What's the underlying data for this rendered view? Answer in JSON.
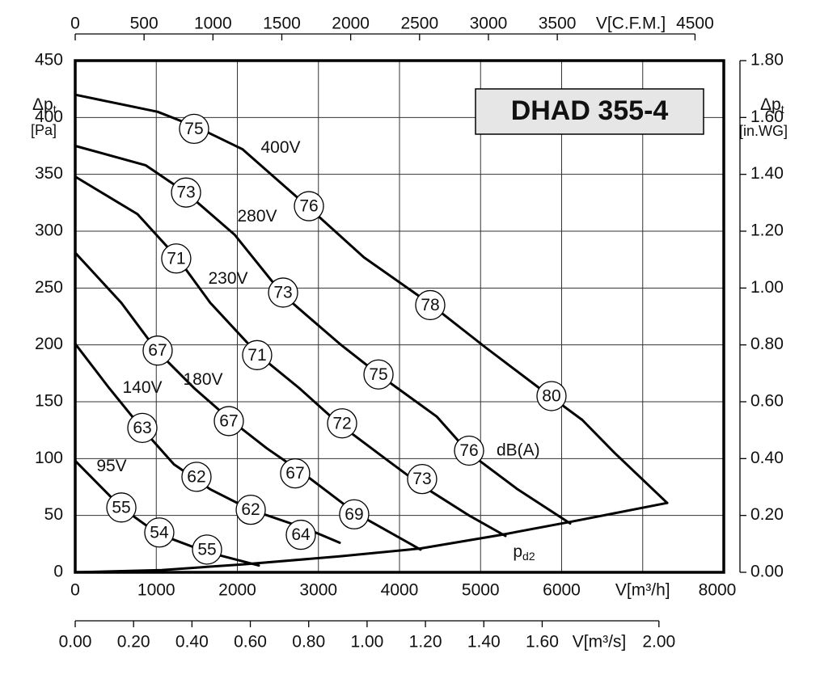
{
  "chart_data": {
    "type": "line",
    "title": "DHAD 355-4",
    "xlim": [
      0,
      8000
    ],
    "xticks": [
      0,
      1000,
      2000,
      3000,
      4000,
      5000,
      6000,
      {
        "value": 7000,
        "label": "V[m³/h]"
      },
      8000
    ],
    "ylim": [
      0,
      450
    ],
    "yticks": [
      0,
      50,
      100,
      150,
      200,
      250,
      300,
      350,
      400,
      450
    ],
    "ylabel": "Δp",
    "ylabel_subscript": "t",
    "ylabel_unit": "[Pa]",
    "x2lim": [
      0,
      4708.8
    ],
    "x2ticks": [
      0,
      500,
      1000,
      1500,
      2000,
      2500,
      3000,
      3500,
      4500
    ],
    "x2label": "V[C.F.M.]",
    "x3lim": [
      0,
      2.2222
    ],
    "x3ticks": [
      {
        "value": 0,
        "label": "0.00"
      },
      {
        "value": 0.2,
        "label": "0.20"
      },
      {
        "value": 0.4,
        "label": "0.40"
      },
      {
        "value": 0.6,
        "label": "0.60"
      },
      {
        "value": 0.8,
        "label": "0.80"
      },
      {
        "value": 1.0,
        "label": "1.00"
      },
      {
        "value": 1.2,
        "label": "1.20"
      },
      {
        "value": 1.4,
        "label": "1.40"
      },
      {
        "value": 1.6,
        "label": "1.60"
      },
      {
        "value": 2.0,
        "label": "2.00"
      }
    ],
    "x3label": "V[m³/s]",
    "y2lim": [
      0,
      1.8
    ],
    "y2ticks": [
      {
        "value": 0,
        "label": "0.00"
      },
      {
        "value": 0.2,
        "label": "0.20"
      },
      {
        "value": 0.4,
        "label": "0.40"
      },
      {
        "value": 0.6,
        "label": "0.60"
      },
      {
        "value": 0.8,
        "label": "0.80"
      },
      {
        "value": 1.0,
        "label": "1.00"
      },
      {
        "value": 1.2,
        "label": "1.20"
      },
      {
        "value": 1.4,
        "label": "1.40"
      },
      {
        "value": 1.6,
        "label": "1.60"
      },
      {
        "value": 1.8,
        "label": "1.80"
      }
    ],
    "y2label": "Δp",
    "y2label_subscript": "t",
    "y2label_unit": "[in.WG]",
    "grid": true,
    "sound_unit": "dB(A)",
    "series": [
      {
        "name": "400V",
        "color": "#000000",
        "x": [
          0,
          1017,
          1516,
          2065,
          2863,
          3561,
          4359,
          5057,
          5855,
          6254,
          6653,
          7302
        ],
        "values": [
          420,
          405,
          391,
          372,
          322,
          277,
          237,
          198,
          155,
          134,
          105,
          61
        ]
      },
      {
        "name": "280V",
        "color": "#000000",
        "x": [
          0,
          868,
          1367,
          1965,
          2564,
          3262,
          3761,
          4459,
          4858,
          5456,
          6105
        ],
        "values": [
          375,
          358,
          334,
          297,
          244,
          201,
          173,
          137,
          105,
          73,
          43
        ]
      },
      {
        "name": "230V",
        "color": "#000000",
        "x": [
          0,
          768,
          1267,
          1666,
          2264,
          2763,
          3262,
          3860,
          4259,
          4858,
          5307
        ],
        "values": [
          348,
          315,
          276,
          237,
          191,
          162,
          130,
          98,
          77,
          50,
          32
        ]
      },
      {
        "name": "180V",
        "color": "#000000",
        "x": [
          0,
          569,
          1017,
          1466,
          1915,
          2364,
          2813,
          3461,
          4259
        ],
        "values": [
          281,
          237,
          194,
          162,
          134,
          109,
          87,
          52,
          20
        ]
      },
      {
        "name": "140V",
        "color": "#000000",
        "x": [
          0,
          419,
          818,
          1217,
          1666,
          2165,
          2863,
          3262
        ],
        "values": [
          201,
          162,
          127,
          95,
          73,
          55,
          38,
          26
        ]
      },
      {
        "name": "95V",
        "color": "#000000",
        "x": [
          0,
          569,
          1017,
          1616,
          2264
        ],
        "values": [
          98,
          57,
          34,
          18,
          6
        ]
      },
      {
        "name": "p",
        "subscript": "d2",
        "color": "#000000",
        "x": [
          0,
          1067,
          2065,
          3262,
          4259,
          5257,
          6155,
          7302
        ],
        "values": [
          0,
          2,
          7,
          14,
          21,
          33,
          45,
          61
        ]
      }
    ],
    "sound_levels": [
      {
        "value": 75,
        "x": 1466,
        "y": 390
      },
      {
        "value": 76,
        "x": 2883,
        "y": 322
      },
      {
        "value": 78,
        "x": 4379,
        "y": 235
      },
      {
        "value": 80,
        "x": 5875,
        "y": 155
      },
      {
        "value": 73,
        "x": 1367,
        "y": 334
      },
      {
        "value": 73,
        "x": 2564,
        "y": 246
      },
      {
        "value": 75,
        "x": 3741,
        "y": 174
      },
      {
        "value": 76,
        "x": 4858,
        "y": 107
      },
      {
        "value": 71,
        "x": 1246,
        "y": 276
      },
      {
        "value": 71,
        "x": 2244,
        "y": 191
      },
      {
        "value": 72,
        "x": 3292,
        "y": 131
      },
      {
        "value": 73,
        "x": 4279,
        "y": 82
      },
      {
        "value": 67,
        "x": 1017,
        "y": 195
      },
      {
        "value": 67,
        "x": 1895,
        "y": 133
      },
      {
        "value": 67,
        "x": 2713,
        "y": 87
      },
      {
        "value": 69,
        "x": 3441,
        "y": 51
      },
      {
        "value": 63,
        "x": 828,
        "y": 127
      },
      {
        "value": 62,
        "x": 1496,
        "y": 84
      },
      {
        "value": 62,
        "x": 2165,
        "y": 55
      },
      {
        "value": 64,
        "x": 2783,
        "y": 33
      },
      {
        "value": 55,
        "x": 569,
        "y": 57
      },
      {
        "value": 54,
        "x": 1037,
        "y": 35
      },
      {
        "value": 55,
        "x": 1626,
        "y": 20
      }
    ]
  }
}
